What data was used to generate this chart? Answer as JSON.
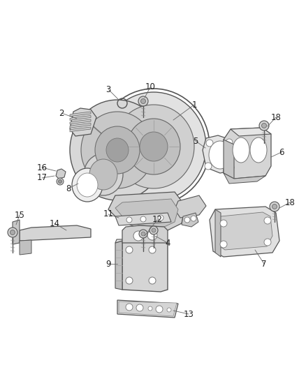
{
  "background_color": "#ffffff",
  "fig_width": 4.38,
  "fig_height": 5.33,
  "dpi": 100,
  "line_color": "#666666",
  "label_fontsize": 8.5,
  "label_color": "#222222"
}
